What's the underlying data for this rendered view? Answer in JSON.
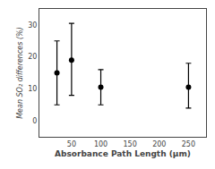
{
  "chart_data": {
    "type": "scatter",
    "x": [
      25,
      50,
      100,
      250
    ],
    "values": [
      15.0,
      19.0,
      10.5,
      10.5
    ],
    "yerr_lower": [
      10.0,
      11.0,
      5.5,
      6.5
    ],
    "yerr_upper": [
      10.0,
      11.5,
      5.5,
      7.5
    ],
    "xlim": [
      -5,
      280
    ],
    "ylim": [
      -5,
      35
    ],
    "xticks": [
      50,
      100,
      150,
      200,
      250
    ],
    "yticks": [
      0,
      10,
      20,
      30
    ],
    "xlabel": "Absorbance Path Length (μm)",
    "ylabel": "Mean SO₂ differences (%)",
    "color": "black",
    "marker": "circle",
    "grid": false
  }
}
